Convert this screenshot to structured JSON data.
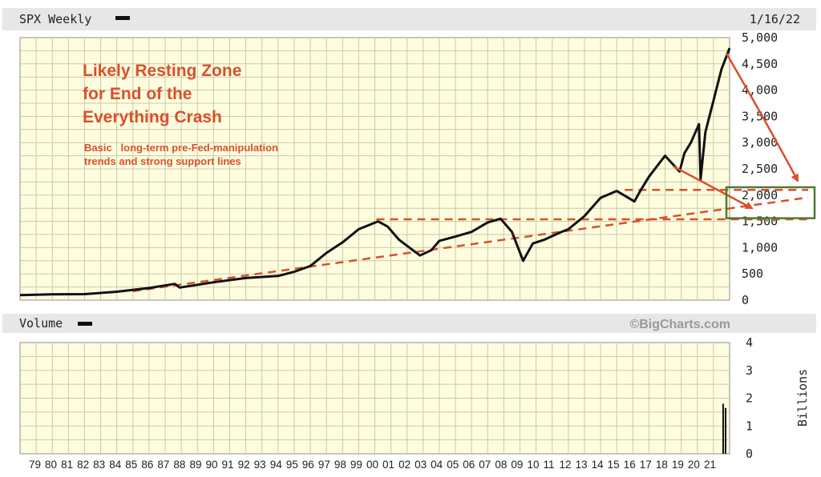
{
  "header": {
    "title": "SPX Weekly",
    "date": "1/16/22"
  },
  "volume_header": {
    "title": "Volume",
    "watermark": "©BigCharts.com"
  },
  "annotation": {
    "headline": [
      "Likely Resting Zone",
      "for End of the",
      "Everything Crash"
    ],
    "subtext": [
      "Basic   long-term pre-Fed-manipulation",
      "trends and strong support lines"
    ]
  },
  "colors": {
    "background": "#ffffff",
    "header_bg": "#e7e7e7",
    "panel_bg": "#fffde0",
    "grid": "#c9c9a3",
    "frame": "#8e8e8e",
    "price_line": "#111111",
    "annotation": "#d9502b",
    "zone_box": "#4e7a32"
  },
  "chart_data": [
    {
      "type": "line",
      "title": "SPX Weekly",
      "ylabel": "",
      "ylim": [
        0,
        5000
      ],
      "y_ticks": [
        "0",
        "500",
        "1,000",
        "1,500",
        "2,000",
        "2,500",
        "3,000",
        "3,500",
        "4,000",
        "4,500",
        "5,000"
      ],
      "y_tick_values": [
        0,
        500,
        1000,
        1500,
        2000,
        2500,
        3000,
        3500,
        4000,
        4500,
        5000
      ],
      "xlim": [
        1978,
        2022
      ],
      "grid": true,
      "series": [
        {
          "x": [
            1978,
            1980,
            1982,
            1984,
            1986,
            1987.6,
            1987.9,
            1990,
            1992,
            1994,
            1995,
            1996,
            1997,
            1998,
            1999,
            2000.2,
            2000.8,
            2001.5,
            2002.8,
            2003.5,
            2004,
            2005,
            2006,
            2007,
            2007.8,
            2008.5,
            2009.2,
            2009.8,
            2010.5,
            2011.5,
            2012,
            2013,
            2014,
            2015,
            2016.1,
            2016.5,
            2017,
            2018,
            2018.9,
            2019.2,
            2019.6,
            2020.1,
            2020.2,
            2020.5,
            2021,
            2021.5,
            2022
          ],
          "y": [
            95,
            110,
            115,
            160,
            230,
            310,
            240,
            340,
            420,
            460,
            540,
            650,
            900,
            1100,
            1350,
            1500,
            1400,
            1150,
            850,
            950,
            1130,
            1210,
            1300,
            1480,
            1550,
            1300,
            750,
            1080,
            1150,
            1290,
            1350,
            1600,
            1950,
            2080,
            1880,
            2100,
            2350,
            2750,
            2450,
            2800,
            3000,
            3350,
            2300,
            3200,
            3800,
            4400,
            4800
          ]
        }
      ],
      "annotation_lines": [
        {
          "style": "dashed",
          "x": [
            1985,
            2022
          ],
          "y": [
            170,
            1650
          ]
        },
        {
          "style": "dashed",
          "x": [
            2000.1,
            2022
          ],
          "y": [
            1540,
            1540
          ]
        },
        {
          "style": "dashed",
          "x": [
            2015.5,
            2022
          ],
          "y": [
            2100,
            2100
          ]
        }
      ],
      "annotation_arrows": [
        {
          "x": [
            2018.5,
            2022
          ],
          "y": [
            2550,
            1750
          ]
        },
        {
          "x": [
            2021.8,
            2022
          ],
          "y": [
            4700,
            2150
          ]
        }
      ],
      "zone_box": {
        "ylim": [
          1560,
          2150
        ]
      }
    },
    {
      "type": "bar",
      "title": "Volume",
      "ylabel": "Billions",
      "ylim": [
        0,
        4
      ],
      "y_ticks": [
        "0",
        "1",
        "2",
        "3",
        "4"
      ],
      "y_tick_values": [
        0,
        1,
        2,
        3,
        4
      ],
      "x_ticks": [
        "79",
        "80",
        "81",
        "82",
        "83",
        "84",
        "85",
        "86",
        "87",
        "88",
        "89",
        "90",
        "91",
        "92",
        "93",
        "94",
        "95",
        "96",
        "97",
        "98",
        "99",
        "00",
        "01",
        "02",
        "03",
        "04",
        "05",
        "06",
        "07",
        "08",
        "09",
        "10",
        "11",
        "12",
        "13",
        "14",
        "15",
        "16",
        "17",
        "18",
        "19",
        "20",
        "21"
      ],
      "x_tick_values": [
        1979,
        1980,
        1981,
        1982,
        1983,
        1984,
        1985,
        1986,
        1987,
        1988,
        1989,
        1990,
        1991,
        1992,
        1993,
        1994,
        1995,
        1996,
        1997,
        1998,
        1999,
        2000,
        2001,
        2002,
        2003,
        2004,
        2005,
        2006,
        2007,
        2008,
        2009,
        2010,
        2011,
        2012,
        2013,
        2014,
        2015,
        2016,
        2017,
        2018,
        2019,
        2020,
        2021
      ],
      "xlim": [
        1978,
        2022
      ],
      "grid": true,
      "series": [
        {
          "x": [
            2021.55,
            2021.7
          ],
          "values": [
            1.8,
            1.65
          ]
        }
      ]
    }
  ]
}
